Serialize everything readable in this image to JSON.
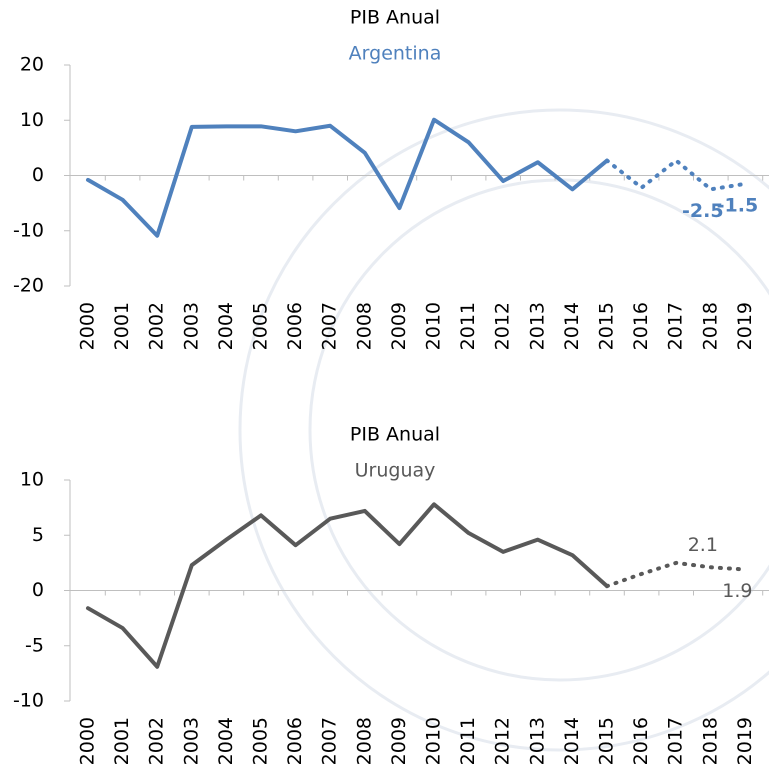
{
  "chart_data": [
    {
      "type": "line",
      "title": "PIB Anual",
      "subtitle": "Argentina",
      "subtitle_color": "#4f81bd",
      "categories": [
        "2000",
        "2001",
        "2002",
        "2003",
        "2004",
        "2005",
        "2006",
        "2007",
        "2008",
        "2009",
        "2010",
        "2011",
        "2012",
        "2013",
        "2014",
        "2015",
        "2016",
        "2017",
        "2018",
        "2019"
      ],
      "series": [
        {
          "color": "#4f81bd",
          "style": "solid",
          "values": [
            -0.8,
            -4.4,
            -10.9,
            8.8,
            8.9,
            8.9,
            8.0,
            9.0,
            4.1,
            -5.9,
            10.1,
            6.0,
            -1.0,
            2.4,
            -2.5,
            2.7,
            null,
            null,
            null,
            null
          ]
        },
        {
          "color": "#4f81bd",
          "style": "dotted",
          "values": [
            null,
            null,
            null,
            null,
            null,
            null,
            null,
            null,
            null,
            null,
            null,
            null,
            null,
            null,
            null,
            2.7,
            -2.2,
            2.7,
            -2.5,
            -1.5
          ],
          "value_labels": [
            null,
            null,
            null,
            null,
            null,
            null,
            null,
            null,
            null,
            null,
            null,
            null,
            null,
            null,
            null,
            null,
            null,
            null,
            "-2.5",
            "-1.5"
          ],
          "label_side": "below"
        }
      ],
      "ylim": [
        -20,
        20
      ],
      "yticks": [
        -20,
        -10,
        0,
        10,
        20
      ]
    },
    {
      "type": "line",
      "title": "PIB Anual",
      "subtitle": "Uruguay",
      "subtitle_color": "#595959",
      "categories": [
        "2000",
        "2001",
        "2002",
        "2003",
        "2004",
        "2005",
        "2006",
        "2007",
        "2008",
        "2009",
        "2010",
        "2011",
        "2012",
        "2013",
        "2014",
        "2015",
        "2016",
        "2017",
        "2018",
        "2019"
      ],
      "series": [
        {
          "color": "#595959",
          "style": "solid",
          "values": [
            -1.6,
            -3.4,
            -6.9,
            2.3,
            4.6,
            6.8,
            4.1,
            6.5,
            7.2,
            4.2,
            7.8,
            5.2,
            3.5,
            4.6,
            3.2,
            0.4,
            null,
            null,
            null,
            null
          ]
        },
        {
          "color": "#595959",
          "style": "dotted",
          "values": [
            null,
            null,
            null,
            null,
            null,
            null,
            null,
            null,
            null,
            null,
            null,
            null,
            null,
            null,
            null,
            0.4,
            1.5,
            2.5,
            2.1,
            1.9
          ],
          "value_labels": [
            null,
            null,
            null,
            null,
            null,
            null,
            null,
            null,
            null,
            null,
            null,
            null,
            null,
            null,
            null,
            null,
            null,
            null,
            "2.1",
            "1.9"
          ],
          "label_side": "alternate"
        }
      ],
      "ylim": [
        -10,
        10
      ],
      "yticks": [
        -10,
        -5,
        0,
        5,
        10
      ]
    }
  ]
}
